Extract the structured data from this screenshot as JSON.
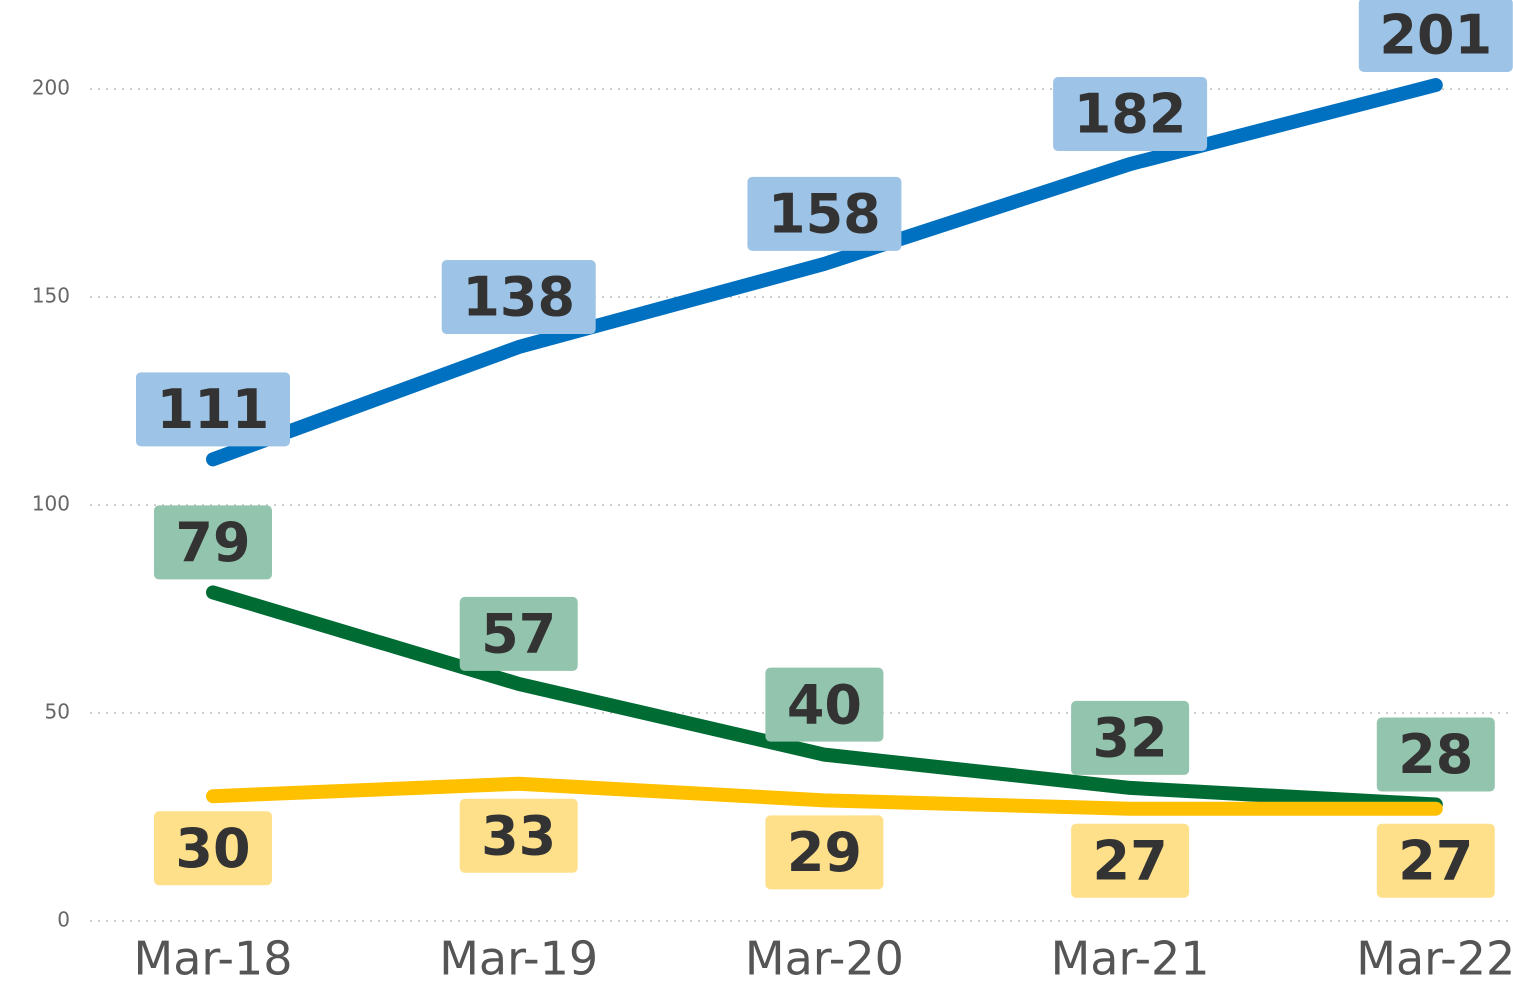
{
  "chart_data": {
    "type": "line",
    "categories": [
      "Mar-18",
      "Mar-19",
      "Mar-20",
      "Mar-21",
      "Mar-22"
    ],
    "series": [
      {
        "color": "#0070c0",
        "label_color": "#9dc3e6",
        "label_position": "above",
        "values": [
          111,
          138,
          158,
          182,
          201
        ]
      },
      {
        "color": "#006b33",
        "label_color": "#93c4ad",
        "label_position": "above",
        "values": [
          79,
          57,
          40,
          32,
          28
        ]
      },
      {
        "color": "#ffc000",
        "label_color": "#ffe08a",
        "label_position": "below",
        "values": [
          30,
          33,
          29,
          27,
          27
        ]
      }
    ],
    "ylim": [
      0,
      220
    ],
    "yticks": [
      0,
      50,
      100,
      150,
      200
    ],
    "grid": true
  }
}
